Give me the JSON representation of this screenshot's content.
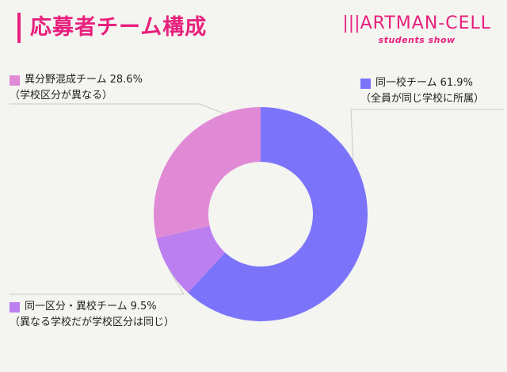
{
  "title": "応募者チーム構成",
  "brand": {
    "name": "ARTMAN-CELL",
    "sub": "students show"
  },
  "chart_data": {
    "type": "pie",
    "title": "応募者チーム構成",
    "series": [
      {
        "name": "同一校チーム",
        "value": 61.9,
        "label": "61.9%",
        "note": "（全員が同じ学校に所属）",
        "color": "#7b74fb"
      },
      {
        "name": "同一区分・異校チーム",
        "value": 9.5,
        "label": "9.5%",
        "note": "（異なる学校だが学校区分は同じ）",
        "color": "#bb7ff0"
      },
      {
        "name": "異分野混成チーム",
        "value": 28.6,
        "label": "28.6%",
        "note": "（学校区分が異なる）",
        "color": "#e08ad6"
      }
    ],
    "donut": true,
    "legend": "around"
  }
}
